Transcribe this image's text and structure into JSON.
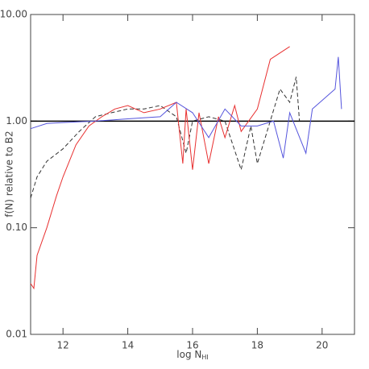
{
  "chart_data": {
    "type": "line",
    "x_label": {
      "text": "log N",
      "subscript": "HI"
    },
    "y_label": "f(N) relative to B2",
    "xlim": [
      11,
      21
    ],
    "xticks": [
      12,
      14,
      16,
      18,
      20
    ],
    "ylim": [
      0.01,
      10
    ],
    "log_y": true,
    "yticks": [
      {
        "value": 0.01,
        "label": "0.01"
      },
      {
        "value": 0.1,
        "label": "0.10"
      },
      {
        "value": 1,
        "label": "1.00"
      },
      {
        "value": 10,
        "label": "10.00"
      }
    ],
    "hlines": [
      {
        "value": 1,
        "color": "#000000"
      }
    ],
    "series": [
      {
        "color": "#333333",
        "dash": true,
        "x": [
          11,
          11.2,
          11.5,
          12,
          12.5,
          13,
          13.5,
          14,
          14.5,
          15,
          15.5,
          15.8,
          16,
          16.5,
          17,
          17.5,
          17.8,
          18,
          18.3,
          18.7,
          19,
          19.2,
          19.3
        ],
        "values": [
          0.19,
          0.3,
          0.42,
          0.55,
          0.8,
          1.1,
          1.2,
          1.3,
          1.3,
          1.4,
          1.1,
          0.5,
          1.0,
          1.1,
          1.0,
          0.35,
          0.9,
          0.4,
          0.8,
          2.0,
          1.5,
          2.6,
          1.0
        ]
      },
      {
        "color": "#e83030",
        "dash": false,
        "x": [
          11,
          11.1,
          11.2,
          11.5,
          11.8,
          12,
          12.4,
          12.8,
          13.2,
          13.6,
          14,
          14.5,
          15,
          15.5,
          15.7,
          15.8,
          16,
          16.2,
          16.5,
          16.8,
          17,
          17.3,
          17.5,
          18,
          18.4,
          19
        ],
        "values": [
          0.03,
          0.027,
          0.055,
          0.1,
          0.2,
          0.3,
          0.6,
          0.9,
          1.1,
          1.3,
          1.4,
          1.2,
          1.3,
          1.5,
          0.4,
          1.3,
          0.35,
          1.2,
          0.4,
          1.1,
          0.7,
          1.4,
          0.8,
          1.3,
          3.8,
          5.0
        ]
      },
      {
        "color": "#5555dd",
        "dash": false,
        "x": [
          11,
          11.5,
          12,
          13,
          14,
          15,
          15.5,
          16,
          16.5,
          17,
          17.5,
          18,
          18.5,
          18.8,
          19,
          19.5,
          19.7,
          20.4,
          20.5,
          20.6
        ],
        "values": [
          0.85,
          0.95,
          0.97,
          1.0,
          1.05,
          1.1,
          1.5,
          1.2,
          0.7,
          1.3,
          0.9,
          0.9,
          1.0,
          0.45,
          1.2,
          0.5,
          1.3,
          2.0,
          4.0,
          1.3
        ]
      }
    ]
  }
}
